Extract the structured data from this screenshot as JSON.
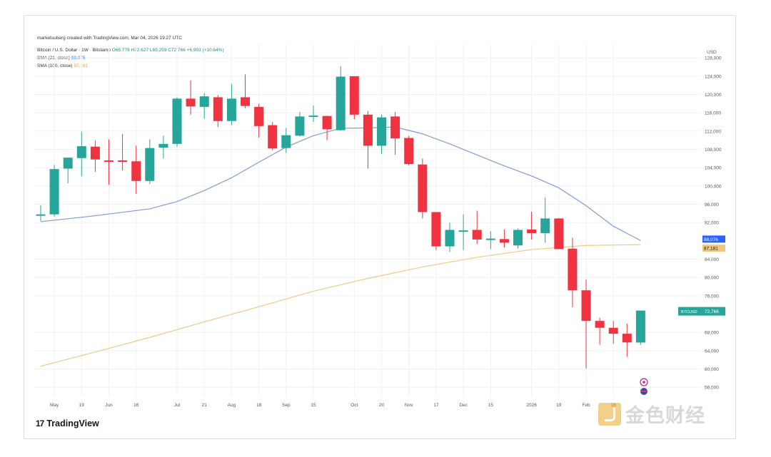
{
  "credit": "marketsuberg created with TradingView.com, Mar 04, 2026 19:27 UTC",
  "legend": {
    "line1_prefix": "Bitcoin / U.S. Dollar · 1W · Bitstamp",
    "ohlc": "O65,776 H72,627 L65,259 C72,766 +6,993 (+10.64%)",
    "sma21_label": "SMA (21, close)",
    "sma21_value": "88,076",
    "sma100_label": "SMA (100, close)",
    "sma100_value": "87,181"
  },
  "branding": {
    "tv_mark": "17",
    "tv_name": "TradingView",
    "watermark": "金色财经"
  },
  "colors": {
    "up": "#26a69a",
    "down": "#ef3340",
    "sma21": "#7f9bd6",
    "sma100": "#f0c987",
    "grid": "#f0f1f3",
    "axis_text": "#555555"
  },
  "chart_data": {
    "type": "candlestick",
    "currency": "USD",
    "ylim": [
      54000,
      131000
    ],
    "yticks": [
      {
        "v": 128000,
        "label": "128,000"
      },
      {
        "v": 124000,
        "label": "124,000"
      },
      {
        "v": 120000,
        "label": "120,000"
      },
      {
        "v": 116000,
        "label": "116,000"
      },
      {
        "v": 112000,
        "label": "112,000"
      },
      {
        "v": 108000,
        "label": "108,000"
      },
      {
        "v": 104000,
        "label": "104,000"
      },
      {
        "v": 100000,
        "label": "100,000"
      },
      {
        "v": 96000,
        "label": "96,000"
      },
      {
        "v": 92000,
        "label": "92,000"
      },
      {
        "v": 84000,
        "label": "84,000"
      },
      {
        "v": 80000,
        "label": "80,000"
      },
      {
        "v": 76000,
        "label": "76,000"
      },
      {
        "v": 68000,
        "label": "68,000"
      },
      {
        "v": 64000,
        "label": "64,000"
      },
      {
        "v": 60000,
        "label": "60,000"
      },
      {
        "v": 56000,
        "label": "56,000"
      }
    ],
    "xticks": [
      {
        "i": 1,
        "label": "May"
      },
      {
        "i": 3,
        "label": "19"
      },
      {
        "i": 5,
        "label": "Jun"
      },
      {
        "i": 7,
        "label": "16"
      },
      {
        "i": 10,
        "label": "Jul"
      },
      {
        "i": 12,
        "label": "21"
      },
      {
        "i": 14,
        "label": "Aug"
      },
      {
        "i": 16,
        "label": "18"
      },
      {
        "i": 18,
        "label": "Sep"
      },
      {
        "i": 20,
        "label": "15"
      },
      {
        "i": 23,
        "label": "Oct"
      },
      {
        "i": 25,
        "label": "20"
      },
      {
        "i": 27,
        "label": "Nov"
      },
      {
        "i": 29,
        "label": "17"
      },
      {
        "i": 31,
        "label": "Dec"
      },
      {
        "i": 33,
        "label": "15"
      },
      {
        "i": 36,
        "label": "2026"
      },
      {
        "i": 38,
        "label": "19"
      },
      {
        "i": 40,
        "label": "Feb"
      },
      {
        "i": 42,
        "label": "16"
      }
    ],
    "candles": [
      {
        "o": 93500,
        "h": 95800,
        "l": 92300,
        "c": 93800
      },
      {
        "o": 93800,
        "h": 104600,
        "l": 93300,
        "c": 103700
      },
      {
        "o": 103800,
        "h": 105700,
        "l": 100600,
        "c": 106200
      },
      {
        "o": 106100,
        "h": 111900,
        "l": 102100,
        "c": 108700
      },
      {
        "o": 108600,
        "h": 110000,
        "l": 103100,
        "c": 105800
      },
      {
        "o": 105600,
        "h": 110200,
        "l": 100300,
        "c": 105500
      },
      {
        "o": 105600,
        "h": 111400,
        "l": 103400,
        "c": 105300
      },
      {
        "o": 105400,
        "h": 108800,
        "l": 98300,
        "c": 101100
      },
      {
        "o": 101100,
        "h": 110200,
        "l": 100400,
        "c": 108300
      },
      {
        "o": 108400,
        "h": 111000,
        "l": 106000,
        "c": 109200
      },
      {
        "o": 109200,
        "h": 119400,
        "l": 108600,
        "c": 119100
      },
      {
        "o": 119100,
        "h": 123100,
        "l": 115600,
        "c": 117400
      },
      {
        "o": 117300,
        "h": 120300,
        "l": 114700,
        "c": 119600
      },
      {
        "o": 119400,
        "h": 119900,
        "l": 112900,
        "c": 114200
      },
      {
        "o": 114200,
        "h": 122300,
        "l": 113300,
        "c": 119100
      },
      {
        "o": 119400,
        "h": 124400,
        "l": 117000,
        "c": 117500
      },
      {
        "o": 117300,
        "h": 118000,
        "l": 110600,
        "c": 113100
      },
      {
        "o": 113300,
        "h": 114000,
        "l": 107800,
        "c": 108200
      },
      {
        "o": 108300,
        "h": 112700,
        "l": 107200,
        "c": 111100
      },
      {
        "o": 111000,
        "h": 116200,
        "l": 110800,
        "c": 115200
      },
      {
        "o": 115300,
        "h": 117600,
        "l": 114000,
        "c": 115400
      },
      {
        "o": 115300,
        "h": 115400,
        "l": 110000,
        "c": 112400
      },
      {
        "o": 112200,
        "h": 126200,
        "l": 112100,
        "c": 123900
      },
      {
        "o": 124000,
        "h": 124000,
        "l": 114600,
        "c": 115600
      },
      {
        "o": 115600,
        "h": 116400,
        "l": 103800,
        "c": 108800
      },
      {
        "o": 108800,
        "h": 115600,
        "l": 107000,
        "c": 115000
      },
      {
        "o": 115200,
        "h": 116200,
        "l": 106800,
        "c": 110400
      },
      {
        "o": 110500,
        "h": 111000,
        "l": 104500,
        "c": 104800
      },
      {
        "o": 104700,
        "h": 106000,
        "l": 92900,
        "c": 94300
      },
      {
        "o": 94300,
        "h": 94300,
        "l": 86000,
        "c": 86800
      },
      {
        "o": 86800,
        "h": 92000,
        "l": 85600,
        "c": 90400
      },
      {
        "o": 90200,
        "h": 93800,
        "l": 86000,
        "c": 90300
      },
      {
        "o": 90400,
        "h": 94600,
        "l": 87300,
        "c": 88300
      },
      {
        "o": 88200,
        "h": 90100,
        "l": 86200,
        "c": 88500
      },
      {
        "o": 88400,
        "h": 90500,
        "l": 86600,
        "c": 87600
      },
      {
        "o": 87000,
        "h": 90700,
        "l": 86300,
        "c": 90400
      },
      {
        "o": 90500,
        "h": 94400,
        "l": 88300,
        "c": 89700
      },
      {
        "o": 89700,
        "h": 97500,
        "l": 87600,
        "c": 92900
      },
      {
        "o": 92900,
        "h": 93000,
        "l": 86700,
        "c": 86200
      },
      {
        "o": 86300,
        "h": 88700,
        "l": 73500,
        "c": 77200
      },
      {
        "o": 77200,
        "h": 79600,
        "l": 60100,
        "c": 70500
      },
      {
        "o": 70500,
        "h": 71200,
        "l": 65300,
        "c": 69000
      },
      {
        "o": 69000,
        "h": 70500,
        "l": 65500,
        "c": 67700
      },
      {
        "o": 67700,
        "h": 69900,
        "l": 62600,
        "c": 65800
      },
      {
        "o": 65776,
        "h": 72627,
        "l": 65259,
        "c": 72766
      }
    ],
    "sma21": [
      [
        0,
        92200
      ],
      [
        4,
        93500
      ],
      [
        8,
        95000
      ],
      [
        10,
        96600
      ],
      [
        12,
        99000
      ],
      [
        14,
        101800
      ],
      [
        16,
        105200
      ],
      [
        18,
        108500
      ],
      [
        20,
        111000
      ],
      [
        22,
        112600
      ],
      [
        24,
        112700
      ],
      [
        26,
        112900
      ],
      [
        28,
        111400
      ],
      [
        30,
        109200
      ],
      [
        32,
        106800
      ],
      [
        34,
        104400
      ],
      [
        36,
        102200
      ],
      [
        38,
        99600
      ],
      [
        40,
        95700
      ],
      [
        42,
        91200
      ],
      [
        44,
        88076
      ]
    ],
    "sma100": [
      [
        0,
        60600
      ],
      [
        4,
        63700
      ],
      [
        8,
        66900
      ],
      [
        12,
        70300
      ],
      [
        16,
        73600
      ],
      [
        20,
        77000
      ],
      [
        24,
        79800
      ],
      [
        28,
        82300
      ],
      [
        32,
        84400
      ],
      [
        36,
        86100
      ],
      [
        40,
        87000
      ],
      [
        44,
        87181
      ]
    ],
    "last_price_label": "72,766",
    "last_price_sublabel": "BTCUSD",
    "sma21_label": "88,076",
    "sma100_label": "87,181",
    "marker_icons": [
      "event-marker-icon",
      "flag-us-icon"
    ]
  }
}
